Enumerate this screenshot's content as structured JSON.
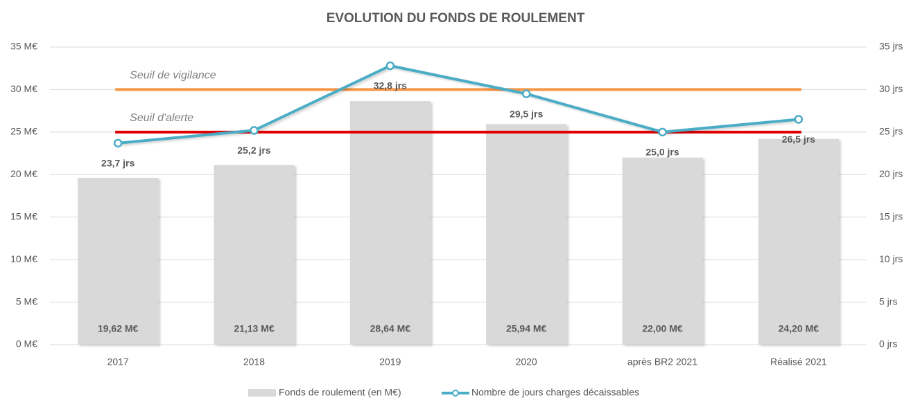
{
  "chart_data": {
    "type": "bar",
    "title": "EVOLUTION DU FONDS DE ROULEMENT",
    "categories": [
      "2017",
      "2018",
      "2019",
      "2020",
      "après BR2 2021",
      "Réalisé 2021"
    ],
    "series": [
      {
        "name": "Fonds de roulement (en M€)",
        "type": "bar",
        "color": "#d9d9d9",
        "values": [
          19.62,
          21.13,
          28.64,
          25.94,
          22.0,
          24.2
        ],
        "value_labels": [
          "19,62 M€",
          "21,13 M€",
          "28,64 M€",
          "25,94 M€",
          "22,00 M€",
          "24,20 M€"
        ]
      },
      {
        "name": "Nombre de jours charges décaissables",
        "type": "line",
        "axis": "y2",
        "color": "#4bacc6",
        "values": [
          23.7,
          25.2,
          32.8,
          29.5,
          25.0,
          26.5
        ],
        "value_labels": [
          "23,7 jrs",
          "25,2 jrs",
          "32,8 jrs",
          "29,5 jrs",
          "25,0 jrs",
          "26,5 jrs"
        ]
      }
    ],
    "reference_lines": [
      {
        "label": "Seuil de vigilance",
        "value": 30,
        "color": "#f79646"
      },
      {
        "label": "Seuil d'alerte",
        "value": 25,
        "color": "#e00000"
      }
    ],
    "ylim": [
      0,
      35
    ],
    "yticks": [
      {
        "value": 0,
        "label": "0 M€"
      },
      {
        "value": 5,
        "label": "5 M€"
      },
      {
        "value": 10,
        "label": "10 M€"
      },
      {
        "value": 15,
        "label": "15 M€"
      },
      {
        "value": 20,
        "label": "20 M€"
      },
      {
        "value": 25,
        "label": "25 M€"
      },
      {
        "value": 30,
        "label": "30 M€"
      },
      {
        "value": 35,
        "label": "35 M€"
      }
    ],
    "y2lim": [
      0,
      35
    ],
    "y2ticks": [
      {
        "value": 0,
        "label": "0 jrs"
      },
      {
        "value": 5,
        "label": "5 jrs"
      },
      {
        "value": 10,
        "label": "10 jrs"
      },
      {
        "value": 15,
        "label": "15 jrs"
      },
      {
        "value": 20,
        "label": "20 jrs"
      },
      {
        "value": 25,
        "label": "25 jrs"
      },
      {
        "value": 30,
        "label": "30 jrs"
      },
      {
        "value": 35,
        "label": "35 jrs"
      }
    ],
    "grid": true,
    "legend": "bottom"
  }
}
